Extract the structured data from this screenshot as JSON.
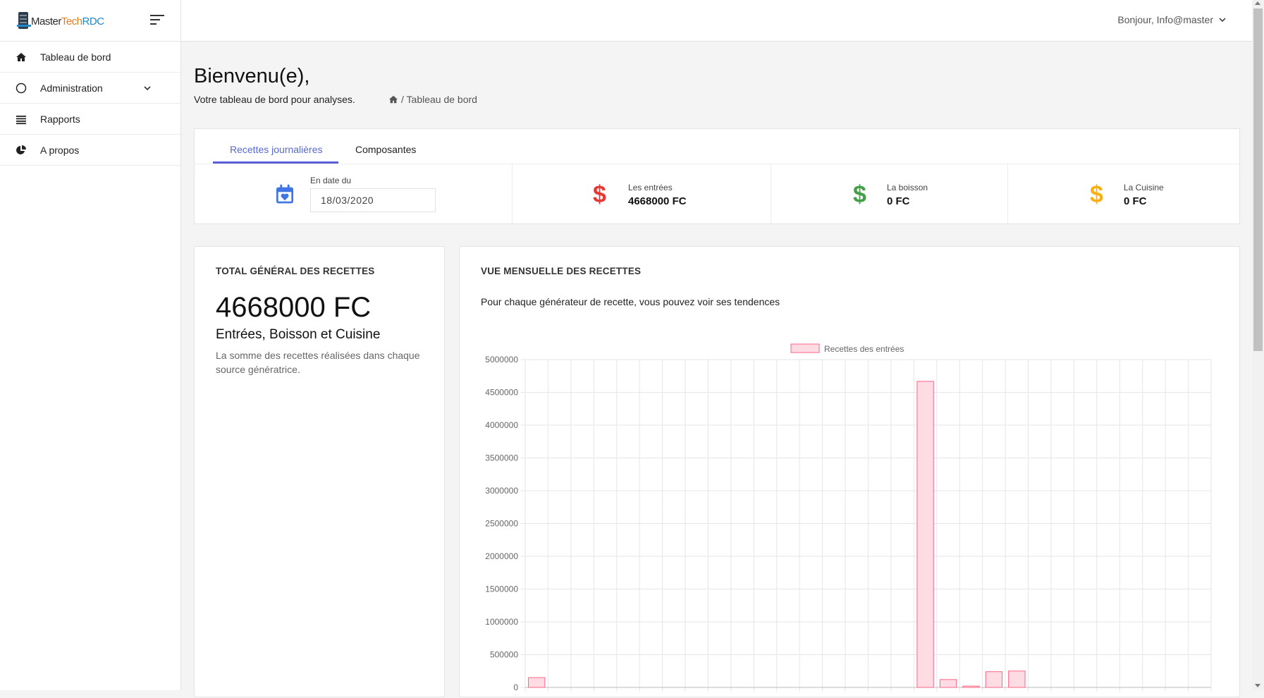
{
  "sidebar": {
    "logo": {
      "master": "Master",
      "tech": "Tech",
      "rdc": "RDC"
    },
    "items": [
      {
        "label": "Tableau de bord",
        "icon": "home-icon"
      },
      {
        "label": "Administration",
        "icon": "circle-icon",
        "expandable": true
      },
      {
        "label": "Rapports",
        "icon": "list-icon"
      },
      {
        "label": "A propos",
        "icon": "pie-chart-icon"
      }
    ]
  },
  "header": {
    "user_greeting": "Bonjour, Info@master"
  },
  "page": {
    "title": "Bienvenu(e),",
    "subtitle": "Votre tableau de bord pour analyses.",
    "breadcrumb": "/ Tableau de bord"
  },
  "tabs": [
    {
      "label": "Recettes journalières",
      "active": true
    },
    {
      "label": "Composantes",
      "active": false
    }
  ],
  "date_filter": {
    "label": "En date du",
    "value": "18/03/2020"
  },
  "stats": [
    {
      "label": "Les entrées",
      "value": "4668000 FC",
      "color": "#e53935"
    },
    {
      "label": "La boisson",
      "value": "0 FC",
      "color": "#43a047"
    },
    {
      "label": "La Cuisine",
      "value": "0 FC",
      "color": "#f9b016"
    }
  ],
  "total_card": {
    "title": "TOTAL GÉNÉRAL DES RECETTES",
    "amount": "4668000 FC",
    "subtitle": "Entrées, Boisson et Cuisine",
    "description": "La somme des recettes réalisées dans chaque source génératrice."
  },
  "monthly_card": {
    "title": "VUE MENSUELLE DES RECETTES",
    "description": "Pour chaque générateur de recette, vous pouvez voir ses tendences"
  },
  "chart_data": {
    "type": "bar",
    "legend": "top",
    "series": [
      {
        "name": "Recettes des entrées",
        "color": "#ff6384",
        "fill": "#ffdce4",
        "values": [
          150000,
          0,
          0,
          0,
          0,
          0,
          0,
          0,
          0,
          0,
          0,
          0,
          0,
          0,
          0,
          0,
          0,
          4668000,
          120000,
          20000,
          240000,
          250000,
          0,
          0,
          0,
          0,
          0,
          0,
          0,
          0
        ]
      }
    ],
    "yticks": [
      "5000000",
      "4500000",
      "4000000",
      "3500000",
      "3000000",
      "2500000",
      "2000000",
      "1500000",
      "1000000",
      "500000",
      "0"
    ],
    "ylim": [
      0,
      5000000
    ],
    "grid": true
  }
}
